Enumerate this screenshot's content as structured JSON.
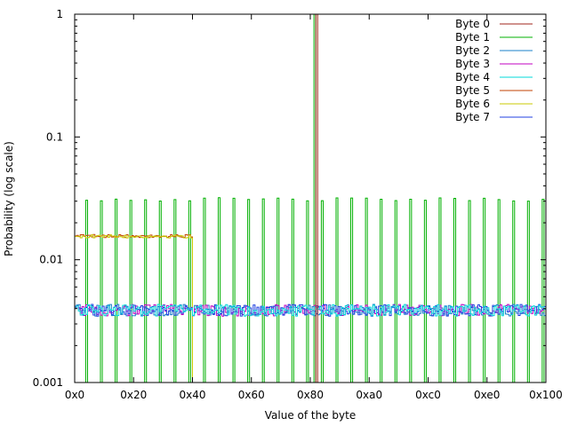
{
  "chart_data": {
    "type": "line",
    "title": "",
    "xlabel": "Value of the byte",
    "ylabel": "Probability (log scale)",
    "xlim": [
      0,
      256
    ],
    "ylim": [
      0.001,
      1
    ],
    "y_scale": "log",
    "grid": false,
    "legend_position": "top-right",
    "x_ticks": [
      {
        "value": 0,
        "label": "0x0"
      },
      {
        "value": 32,
        "label": "0x20"
      },
      {
        "value": 64,
        "label": "0x40"
      },
      {
        "value": 96,
        "label": "0x60"
      },
      {
        "value": 128,
        "label": "0x80"
      },
      {
        "value": 160,
        "label": "0xa0"
      },
      {
        "value": 192,
        "label": "0xc0"
      },
      {
        "value": 224,
        "label": "0xe0"
      },
      {
        "value": 256,
        "label": "0x100"
      }
    ],
    "y_ticks": [
      {
        "value": 0.001,
        "label": "0.001"
      },
      {
        "value": 0.01,
        "label": "0.01"
      },
      {
        "value": 0.1,
        "label": "0.1"
      },
      {
        "value": 1,
        "label": "1"
      }
    ],
    "series": [
      {
        "name": "Byte 0",
        "color": "#a0261c",
        "description": "spike",
        "spike_at": 131,
        "spike_value": 1.0
      },
      {
        "name": "Byte 1",
        "color": "#00b000",
        "description": "comb",
        "period": 8,
        "offset": 6,
        "peak_range": [
          0.03,
          0.032
        ],
        "baseline": 0.001,
        "extra_spike": {
          "at": 130,
          "value": 1.0
        }
      },
      {
        "name": "Byte 2",
        "color": "#1a80c8",
        "description": "noisy",
        "base": 0.0039,
        "range": [
          0,
          256
        ]
      },
      {
        "name": "Byte 3",
        "color": "#c000c0",
        "description": "noisy",
        "base": 0.0039,
        "range": [
          0,
          256
        ]
      },
      {
        "name": "Byte 4",
        "color": "#00d8d8",
        "description": "noisy",
        "base": 0.0039,
        "range": [
          0,
          256
        ]
      },
      {
        "name": "Byte 5",
        "color": "#c04000",
        "description": "flat",
        "base": 0.0156,
        "range": [
          0,
          63
        ],
        "drop_to": 0.001
      },
      {
        "name": "Byte 6",
        "color": "#c8c800",
        "description": "flat",
        "base": 0.0155,
        "range": [
          0,
          63
        ],
        "drop_to": 0.001
      },
      {
        "name": "Byte 7",
        "color": "#2040e0",
        "description": "noisy",
        "base": 0.0039,
        "range": [
          0,
          256
        ]
      }
    ]
  }
}
